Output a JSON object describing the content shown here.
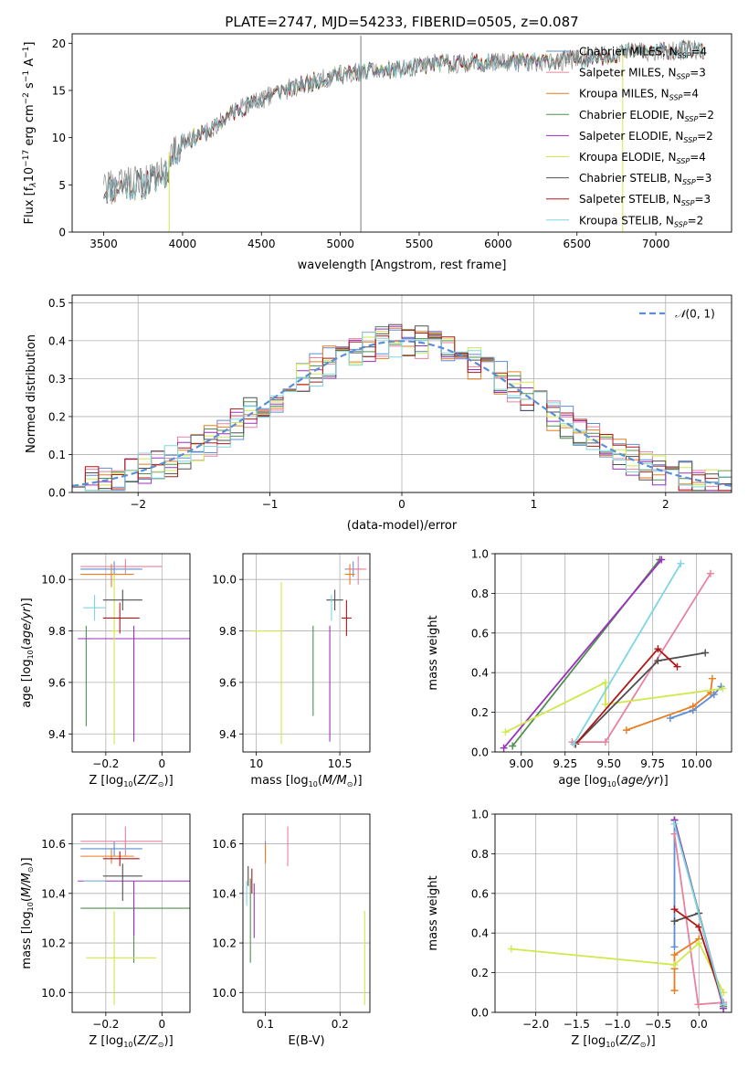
{
  "figure": {
    "title": "PLATE=2747, MJD=54233, FIBERID=0505, z=0.087"
  },
  "legend_entries": [
    {
      "label": "Chabrier MILES, N",
      "sub": "SSP",
      "suffix": "=4",
      "color": "#5b8ed6"
    },
    {
      "label": "Salpeter MILES, N",
      "sub": "SSP",
      "suffix": "=3",
      "color": "#e8829f"
    },
    {
      "label": "Kroupa MILES, N",
      "sub": "SSP",
      "suffix": "=4",
      "color": "#e67e22"
    },
    {
      "label": "Chabrier ELODIE, N",
      "sub": "SSP",
      "suffix": "=2",
      "color": "#4f8f4f"
    },
    {
      "label": "Salpeter ELODIE, N",
      "sub": "SSP",
      "suffix": "=2",
      "color": "#9b30c0"
    },
    {
      "label": "Kroupa ELODIE, N",
      "sub": "SSP",
      "suffix": "=4",
      "color": "#cfe84a"
    },
    {
      "label": "Chabrier STELIB, N",
      "sub": "SSP",
      "suffix": "=3",
      "color": "#505050"
    },
    {
      "label": "Salpeter STELIB, N",
      "sub": "SSP",
      "suffix": "=3",
      "color": "#b01818"
    },
    {
      "label": "Kroupa STELIB, N",
      "sub": "SSP",
      "suffix": "=2",
      "color": "#7dd6e0"
    }
  ],
  "chart_data": [
    {
      "id": "spectrum",
      "type": "line",
      "xlabel": "wavelength [Angstrom, rest frame]",
      "ylabel_parts": [
        "Flux [f",
        "λ",
        "10",
        "−17",
        " erg cm",
        "−2",
        " s",
        "−1",
        " A",
        "−1",
        "]"
      ],
      "xlim": [
        3300,
        7480
      ],
      "ylim": [
        0,
        21
      ],
      "xticks": [
        3500,
        4000,
        4500,
        5000,
        5500,
        6000,
        6500,
        7000
      ],
      "yticks": [
        0,
        5,
        10,
        15,
        20
      ],
      "continuum_knots": {
        "x": [
          3500,
          3600,
          3700,
          3800,
          3900,
          3950,
          4000,
          4100,
          4200,
          4300,
          4400,
          4500,
          4600,
          4800,
          5000,
          5200,
          5400,
          5600,
          5800,
          6000,
          6200,
          6400,
          6600,
          6800,
          7000,
          7200,
          7300
        ],
        "y": [
          4.5,
          4.8,
          5.0,
          5.2,
          6.5,
          8.5,
          9.5,
          10.2,
          11.0,
          12.5,
          13.3,
          14.0,
          14.8,
          15.8,
          16.7,
          17.0,
          17.3,
          17.8,
          17.9,
          18.0,
          18.0,
          18.2,
          18.5,
          19.0,
          19.2,
          19.3,
          19.2
        ]
      },
      "features": [
        {
          "x": 5130,
          "y": [
            0,
            20.8
          ]
        },
        {
          "x": 3915,
          "y": [
            0,
            8.5
          ]
        },
        {
          "x": 6790,
          "y": [
            0,
            19
          ]
        }
      ],
      "series_colors": [
        "#5b8ed6",
        "#e8829f",
        "#e67e22",
        "#4f8f4f",
        "#9b30c0",
        "#cfe84a",
        "#505050",
        "#b01818",
        "#7dd6e0"
      ],
      "data_color": "#7a7a7a"
    },
    {
      "id": "residuals",
      "type": "histogram",
      "xlabel": "(data-model)/error",
      "ylabel": "Normed distribution",
      "xlim": [
        -2.5,
        2.5
      ],
      "ylim": [
        0,
        0.52
      ],
      "xticks": [
        -2,
        -1,
        0,
        1,
        2
      ],
      "yticks": [
        0.0,
        0.1,
        0.2,
        0.3,
        0.4,
        0.5
      ],
      "reference": {
        "label": "N(0,1)",
        "mu": 0,
        "sigma": 1,
        "color": "#5b8ed6"
      },
      "bins": 50,
      "series_colors": [
        "#5b8ed6",
        "#e8829f",
        "#e67e22",
        "#4f8f4f",
        "#9b30c0",
        "#cfe84a",
        "#505050",
        "#b01818",
        "#7dd6e0"
      ]
    },
    {
      "id": "age-vs-Z",
      "type": "errorbar",
      "xlabel": "Z [log10(Z/Z⊙)]",
      "ylabel": "age  [log10(age/yr)]",
      "xlim": [
        -0.32,
        0.1
      ],
      "ylim": [
        9.33,
        10.1
      ],
      "xticks": [
        -0.2,
        0.0
      ],
      "yticks": [
        9.4,
        9.6,
        9.8,
        10.0
      ],
      "points": [
        {
          "color": "#5b8ed6",
          "x": -0.17,
          "xerr": [
            0.12,
            0.1
          ],
          "y": 10.04,
          "yerr": [
            0.03,
            0.03
          ]
        },
        {
          "color": "#e8829f",
          "x": -0.13,
          "xerr": [
            0.16,
            0.13
          ],
          "y": 10.05,
          "yerr": [
            0.03,
            0.03
          ]
        },
        {
          "color": "#e67e22",
          "x": -0.18,
          "xerr": [
            0.11,
            0.08
          ],
          "y": 10.02,
          "yerr": [
            0.05,
            0.04
          ]
        },
        {
          "color": "#4f8f4f",
          "x": -0.27,
          "xerr": [
            0.01,
            0.01
          ],
          "y": 9.77,
          "yerr": [
            0.34,
            0.05
          ]
        },
        {
          "color": "#9b30c0",
          "x": -0.1,
          "xerr": [
            0.2,
            0.2
          ],
          "y": 9.77,
          "yerr": [
            0.4,
            0.05
          ]
        },
        {
          "color": "#cfe84a",
          "x": -0.17,
          "xerr": [
            0.01,
            0.01
          ],
          "y": 9.8,
          "yerr": [
            0.44,
            0.22
          ]
        },
        {
          "color": "#505050",
          "x": -0.14,
          "xerr": [
            0.07,
            0.07
          ],
          "y": 9.92,
          "yerr": [
            0.04,
            0.04
          ]
        },
        {
          "color": "#b01818",
          "x": -0.15,
          "xerr": [
            0.06,
            0.07
          ],
          "y": 9.85,
          "yerr": [
            0.06,
            0.06
          ]
        },
        {
          "color": "#7dd6e0",
          "x": -0.24,
          "xerr": [
            0.04,
            0.04
          ],
          "y": 9.89,
          "yerr": [
            0.05,
            0.05
          ]
        }
      ]
    },
    {
      "id": "age-vs-mass",
      "type": "errorbar",
      "xlabel": "mass [log10(M/M⊙)]",
      "ylabel": "",
      "xlim": [
        9.92,
        10.68
      ],
      "ylim": [
        9.33,
        10.1
      ],
      "xticks": [
        10.0,
        10.5
      ],
      "yticks": [
        9.4,
        9.6,
        9.8,
        10.0
      ],
      "points": [
        {
          "color": "#5b8ed6",
          "x": 10.58,
          "xerr": [
            0.05,
            0.05
          ],
          "y": 10.04,
          "yerr": [
            0.03,
            0.03
          ]
        },
        {
          "color": "#e8829f",
          "x": 10.61,
          "xerr": [
            0.07,
            0.05
          ],
          "y": 10.04,
          "yerr": [
            0.06,
            0.05
          ]
        },
        {
          "color": "#e67e22",
          "x": 10.56,
          "xerr": [
            0.03,
            0.03
          ],
          "y": 10.02,
          "yerr": [
            0.04,
            0.04
          ]
        },
        {
          "color": "#4f8f4f",
          "x": 10.34,
          "xerr": [
            0.0,
            0.0
          ],
          "y": 9.77,
          "yerr": [
            0.3,
            0.05
          ]
        },
        {
          "color": "#9b30c0",
          "x": 10.44,
          "xerr": [
            0.0,
            0.0
          ],
          "y": 9.77,
          "yerr": [
            0.4,
            0.05
          ]
        },
        {
          "color": "#cfe84a",
          "x": 10.15,
          "xerr": [
            0.18,
            0.0
          ],
          "y": 9.8,
          "yerr": [
            0.44,
            0.19
          ]
        },
        {
          "color": "#505050",
          "x": 10.47,
          "xerr": [
            0.05,
            0.05
          ],
          "y": 9.92,
          "yerr": [
            0.04,
            0.04
          ]
        },
        {
          "color": "#b01818",
          "x": 10.54,
          "xerr": [
            0.03,
            0.03
          ],
          "y": 9.85,
          "yerr": [
            0.07,
            0.07
          ]
        },
        {
          "color": "#7dd6e0",
          "x": 10.45,
          "xerr": [
            0.0,
            0.0
          ],
          "y": 9.89,
          "yerr": [
            0.05,
            0.05
          ]
        }
      ]
    },
    {
      "id": "massweight-vs-age",
      "type": "line",
      "xlabel": "age  [log10(age/yr)]",
      "ylabel": "mass weight",
      "xlim": [
        8.85,
        10.2
      ],
      "ylim": [
        0.0,
        1.0
      ],
      "xticks": [
        9.0,
        9.25,
        9.5,
        9.75,
        10.0
      ],
      "xtick_labels": [
        "9.00",
        "9.25",
        "9.50",
        "9.75",
        "10.00"
      ],
      "yticks": [
        0.0,
        0.2,
        0.4,
        0.6,
        0.8,
        1.0
      ],
      "series": [
        {
          "color": "#5b8ed6",
          "x": [
            9.85,
            9.98,
            10.1,
            10.14
          ],
          "y": [
            0.17,
            0.21,
            0.29,
            0.33
          ]
        },
        {
          "color": "#e8829f",
          "x": [
            9.29,
            9.48,
            10.08
          ],
          "y": [
            0.05,
            0.05,
            0.9
          ]
        },
        {
          "color": "#e67e22",
          "x": [
            9.6,
            9.98,
            10.08,
            10.09
          ],
          "y": [
            0.11,
            0.23,
            0.3,
            0.37
          ]
        },
        {
          "color": "#4f8f4f",
          "x": [
            8.95,
            9.79
          ],
          "y": [
            0.03,
            0.97
          ]
        },
        {
          "color": "#9b30c0",
          "x": [
            8.9,
            9.8
          ],
          "y": [
            0.02,
            0.97
          ]
        },
        {
          "color": "#cfe84a",
          "x": [
            8.91,
            9.48,
            9.48,
            10.15
          ],
          "y": [
            0.1,
            0.35,
            0.24,
            0.32
          ]
        },
        {
          "color": "#505050",
          "x": [
            9.31,
            9.78,
            10.05
          ],
          "y": [
            0.04,
            0.46,
            0.5
          ]
        },
        {
          "color": "#b01818",
          "x": [
            9.31,
            9.78,
            9.89
          ],
          "y": [
            0.04,
            0.52,
            0.43
          ]
        },
        {
          "color": "#7dd6e0",
          "x": [
            9.3,
            9.91
          ],
          "y": [
            0.04,
            0.95
          ]
        }
      ]
    },
    {
      "id": "mass-vs-Z",
      "type": "errorbar",
      "xlabel": "Z [log10(Z/Z⊙)]",
      "ylabel": "mass [log10(M/M⊙)]",
      "xlim": [
        -0.32,
        0.1
      ],
      "ylim": [
        9.92,
        10.72
      ],
      "xticks": [
        -0.2,
        0.0
      ],
      "yticks": [
        10.0,
        10.2,
        10.4,
        10.6
      ],
      "points": [
        {
          "color": "#5b8ed6",
          "x": -0.17,
          "xerr": [
            0.12,
            0.1
          ],
          "y": 10.58,
          "yerr": [
            0.03,
            0.03
          ]
        },
        {
          "color": "#e8829f",
          "x": -0.13,
          "xerr": [
            0.16,
            0.13
          ],
          "y": 10.61,
          "yerr": [
            0.06,
            0.06
          ]
        },
        {
          "color": "#e67e22",
          "x": -0.18,
          "xerr": [
            0.11,
            0.08
          ],
          "y": 10.55,
          "yerr": [
            0.03,
            0.03
          ]
        },
        {
          "color": "#4f8f4f",
          "x": -0.1,
          "xerr": [
            0.19,
            0.2
          ],
          "y": 10.34,
          "yerr": [
            0.22,
            0.0
          ]
        },
        {
          "color": "#9b30c0",
          "x": -0.1,
          "xerr": [
            0.2,
            0.2
          ],
          "y": 10.45,
          "yerr": [
            0.22,
            0.0
          ]
        },
        {
          "color": "#cfe84a",
          "x": -0.17,
          "xerr": [
            0.1,
            0.15
          ],
          "y": 10.14,
          "yerr": [
            0.19,
            0.19
          ]
        },
        {
          "color": "#505050",
          "x": -0.14,
          "xerr": [
            0.07,
            0.07
          ],
          "y": 10.47,
          "yerr": [
            0.1,
            0.05
          ]
        },
        {
          "color": "#b01818",
          "x": -0.15,
          "xerr": [
            0.06,
            0.07
          ],
          "y": 10.54,
          "yerr": [
            0.03,
            0.03
          ]
        },
        {
          "color": "#7dd6e0",
          "x": -0.24,
          "xerr": [
            0.04,
            0.04
          ],
          "y": 10.45,
          "yerr": [
            0.0,
            0.0
          ]
        }
      ]
    },
    {
      "id": "mass-vs-EBV",
      "type": "errorbar",
      "xlabel": "E(B-V)",
      "ylabel": "",
      "xlim": [
        0.07,
        0.24
      ],
      "ylim": [
        9.92,
        10.72
      ],
      "xticks": [
        0.1,
        0.2
      ],
      "yticks": [
        10.0,
        10.2,
        10.4,
        10.6
      ],
      "points": [
        {
          "color": "#5b8ed6",
          "x": 0.1,
          "xerr": [
            0.0,
            0.0
          ],
          "y": 10.58,
          "yerr": [
            0.03,
            0.03
          ]
        },
        {
          "color": "#e8829f",
          "x": 0.13,
          "xerr": [
            0.0,
            0.0
          ],
          "y": 10.59,
          "yerr": [
            0.08,
            0.08
          ]
        },
        {
          "color": "#e67e22",
          "x": 0.1,
          "xerr": [
            0.0,
            0.0
          ],
          "y": 10.56,
          "yerr": [
            0.04,
            0.04
          ]
        },
        {
          "color": "#4f8f4f",
          "x": 0.08,
          "xerr": [
            0.0,
            0.0
          ],
          "y": 10.29,
          "yerr": [
            0.17,
            0.17
          ]
        },
        {
          "color": "#9b30c0",
          "x": 0.085,
          "xerr": [
            0.0,
            0.0
          ],
          "y": 10.34,
          "yerr": [
            0.12,
            0.1
          ]
        },
        {
          "color": "#cfe84a",
          "x": 0.233,
          "xerr": [
            0.0,
            0.0
          ],
          "y": 10.14,
          "yerr": [
            0.19,
            0.19
          ]
        },
        {
          "color": "#505050",
          "x": 0.077,
          "xerr": [
            0.0,
            0.0
          ],
          "y": 10.47,
          "yerr": [
            0.04,
            0.04
          ]
        },
        {
          "color": "#b01818",
          "x": 0.082,
          "xerr": [
            0.0,
            0.0
          ],
          "y": 10.45,
          "yerr": [
            0.05,
            0.05
          ]
        },
        {
          "color": "#7dd6e0",
          "x": 0.075,
          "xerr": [
            0.0,
            0.0
          ],
          "y": 10.4,
          "yerr": [
            0.05,
            0.05
          ]
        }
      ]
    },
    {
      "id": "massweight-vs-Z",
      "type": "line",
      "xlabel": "Z [log10(Z/Z⊙)]",
      "ylabel": "mass weight",
      "xlim": [
        -2.5,
        0.4
      ],
      "ylim": [
        0.0,
        1.0
      ],
      "xticks": [
        -2.0,
        -1.5,
        -1.0,
        -0.5,
        0.0
      ],
      "xtick_labels": [
        "−2.0",
        "−1.5",
        "−1.0",
        "−0.5",
        "0.0"
      ],
      "yticks": [
        0.0,
        0.2,
        0.4,
        0.6,
        0.8,
        1.0
      ],
      "series": [
        {
          "color": "#5b8ed6",
          "x": [
            -0.3,
            -0.3,
            0.3,
            0.3
          ],
          "y": [
            0.33,
            0.97,
            0.03,
            0.02
          ]
        },
        {
          "color": "#e8829f",
          "x": [
            -0.3,
            -0.01,
            0.3
          ],
          "y": [
            0.9,
            0.04,
            0.05
          ]
        },
        {
          "color": "#e67e22",
          "x": [
            -0.3,
            -0.3,
            -0.3,
            0.0
          ],
          "y": [
            0.11,
            0.22,
            0.29,
            0.37
          ]
        },
        {
          "color": "#4f8f4f",
          "x": [
            -0.3,
            0.3
          ],
          "y": [
            0.97,
            0.03
          ]
        },
        {
          "color": "#9b30c0",
          "x": [
            -0.3,
            0.3
          ],
          "y": [
            0.97,
            0.02
          ]
        },
        {
          "color": "#cfe84a",
          "x": [
            -2.3,
            -0.3,
            0.0,
            0.3
          ],
          "y": [
            0.32,
            0.24,
            0.35,
            0.1
          ]
        },
        {
          "color": "#505050",
          "x": [
            -0.3,
            0.0,
            0.3
          ],
          "y": [
            0.46,
            0.5,
            0.04
          ]
        },
        {
          "color": "#b01818",
          "x": [
            -0.3,
            0.0,
            0.3
          ],
          "y": [
            0.52,
            0.43,
            0.04
          ]
        },
        {
          "color": "#7dd6e0",
          "x": [
            -0.3,
            0.3
          ],
          "y": [
            0.95,
            0.04
          ]
        }
      ]
    }
  ]
}
